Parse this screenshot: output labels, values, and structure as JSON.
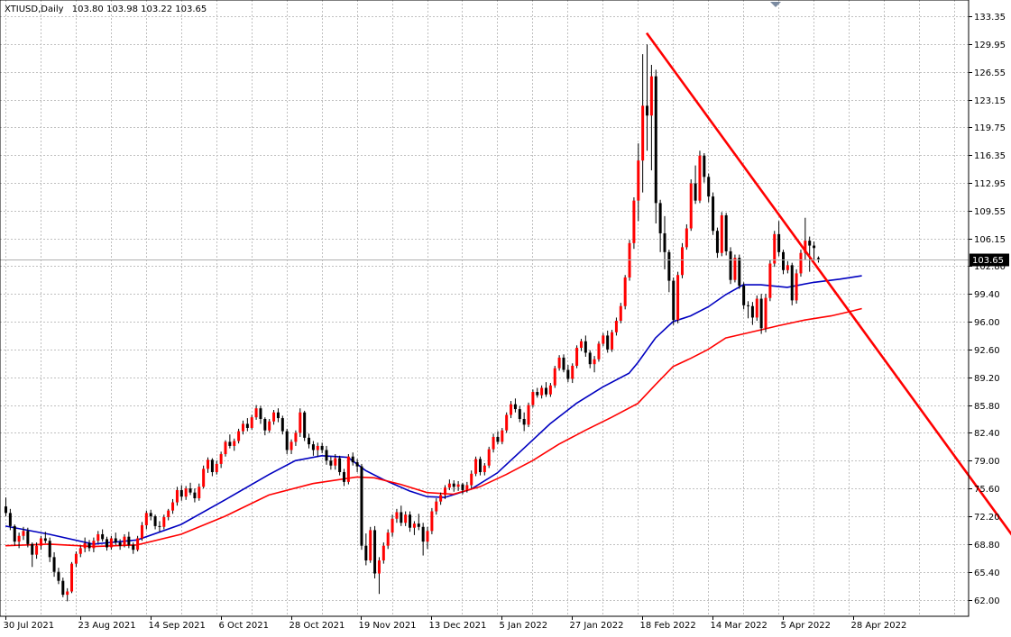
{
  "header": {
    "symbol": "XTIUSD,Daily",
    "ohlc": "103.80 103.98 103.22 103.65"
  },
  "colors": {
    "bull_body": "#ff0000",
    "bear_body": "#000000",
    "wick": "#000000",
    "ma_fast": "#0000c0",
    "ma_slow": "#ff0000",
    "trendline": "#ff0000",
    "price_tag_bg": "#000000",
    "price_tag_text": "#ffffff",
    "grid": "#c0c0c0"
  },
  "chart_data": {
    "type": "candlestick",
    "title": "XTIUSD,Daily",
    "ylim": [
      60.3,
      135.0
    ],
    "y_ticks": [
      "133.35",
      "129.95",
      "126.55",
      "123.15",
      "119.75",
      "116.35",
      "112.95",
      "109.55",
      "106.15",
      "102.80",
      "99.40",
      "96.00",
      "92.60",
      "89.20",
      "85.80",
      "82.40",
      "79.00",
      "75.60",
      "72.20",
      "68.80",
      "65.40",
      "62.00"
    ],
    "x_labels": [
      {
        "date": "30 Jul 2021",
        "bar": 0
      },
      {
        "date": "23 Aug 2021",
        "bar": 17
      },
      {
        "date": "14 Sep 2021",
        "bar": 33
      },
      {
        "date": "6 Oct 2021",
        "bar": 49
      },
      {
        "date": "28 Oct 2021",
        "bar": 65
      },
      {
        "date": "19 Nov 2021",
        "bar": 81
      },
      {
        "date": "13 Dec 2021",
        "bar": 97
      },
      {
        "date": "5 Jan 2022",
        "bar": 113
      },
      {
        "date": "27 Jan 2022",
        "bar": 129
      },
      {
        "date": "18 Feb 2022",
        "bar": 145
      },
      {
        "date": "14 Mar 2022",
        "bar": 161
      },
      {
        "date": "5 Apr 2022",
        "bar": 177
      },
      {
        "date": "28 Apr 2022",
        "bar": 193
      }
    ],
    "current_price": 103.65,
    "candles": [
      [
        73.4,
        74.5,
        72.2,
        72.6
      ],
      [
        72.6,
        73.1,
        70.5,
        71.0
      ],
      [
        71.0,
        71.2,
        68.6,
        69.1
      ],
      [
        69.1,
        70.2,
        68.3,
        69.8
      ],
      [
        69.8,
        70.9,
        69.3,
        70.4
      ],
      [
        70.4,
        70.8,
        68.4,
        68.8
      ],
      [
        68.8,
        69.0,
        66.0,
        67.5
      ],
      [
        67.5,
        69.0,
        67.0,
        68.6
      ],
      [
        68.6,
        69.8,
        68.1,
        69.5
      ],
      [
        69.5,
        70.3,
        68.9,
        69.2
      ],
      [
        69.2,
        69.6,
        66.6,
        67.2
      ],
      [
        67.2,
        67.8,
        64.8,
        65.4
      ],
      [
        65.4,
        65.9,
        63.9,
        64.3
      ],
      [
        64.3,
        64.7,
        62.3,
        62.6
      ],
      [
        62.6,
        63.4,
        61.8,
        63.0
      ],
      [
        63.0,
        66.6,
        62.8,
        66.4
      ],
      [
        66.4,
        67.9,
        66.0,
        67.6
      ],
      [
        67.6,
        68.6,
        67.2,
        68.3
      ],
      [
        68.3,
        69.6,
        67.8,
        68.9
      ],
      [
        68.9,
        69.3,
        67.9,
        68.3
      ],
      [
        68.3,
        69.6,
        67.8,
        69.2
      ],
      [
        69.2,
        70.4,
        68.9,
        70.0
      ],
      [
        70.0,
        70.6,
        69.1,
        69.4
      ],
      [
        69.4,
        69.7,
        68.0,
        68.4
      ],
      [
        68.4,
        69.8,
        68.1,
        69.5
      ],
      [
        69.5,
        70.2,
        68.7,
        69.0
      ],
      [
        69.0,
        69.4,
        68.1,
        68.6
      ],
      [
        68.6,
        70.0,
        68.4,
        69.7
      ],
      [
        69.7,
        70.3,
        68.3,
        68.7
      ],
      [
        68.7,
        69.0,
        67.6,
        68.1
      ],
      [
        68.1,
        69.8,
        67.9,
        69.5
      ],
      [
        69.5,
        71.5,
        69.2,
        71.1
      ],
      [
        71.1,
        72.9,
        70.6,
        72.6
      ],
      [
        72.6,
        73.0,
        71.7,
        72.2
      ],
      [
        72.2,
        72.4,
        70.6,
        71.0
      ],
      [
        71.0,
        71.6,
        70.3,
        70.9
      ],
      [
        70.9,
        72.4,
        70.6,
        72.1
      ],
      [
        72.1,
        73.1,
        71.7,
        72.9
      ],
      [
        72.9,
        74.3,
        72.5,
        73.9
      ],
      [
        73.9,
        75.8,
        73.5,
        75.4
      ],
      [
        75.4,
        76.0,
        74.1,
        74.6
      ],
      [
        74.6,
        75.9,
        74.2,
        75.6
      ],
      [
        75.6,
        76.3,
        74.8,
        75.1
      ],
      [
        75.1,
        75.6,
        73.9,
        74.4
      ],
      [
        74.4,
        76.2,
        74.1,
        75.8
      ],
      [
        75.8,
        78.4,
        75.6,
        78.0
      ],
      [
        78.0,
        79.4,
        77.5,
        79.1
      ],
      [
        79.1,
        79.3,
        77.1,
        77.6
      ],
      [
        77.6,
        79.0,
        77.3,
        78.6
      ],
      [
        78.6,
        80.1,
        78.1,
        79.8
      ],
      [
        79.8,
        81.5,
        79.5,
        81.3
      ],
      [
        81.3,
        82.2,
        80.5,
        80.8
      ],
      [
        80.8,
        81.7,
        80.2,
        81.4
      ],
      [
        81.4,
        82.9,
        81.1,
        82.6
      ],
      [
        82.6,
        83.9,
        82.2,
        83.5
      ],
      [
        83.5,
        84.2,
        82.6,
        83.0
      ],
      [
        83.0,
        84.6,
        82.8,
        84.3
      ],
      [
        84.3,
        85.8,
        84.0,
        85.4
      ],
      [
        85.4,
        85.7,
        83.5,
        84.1
      ],
      [
        84.1,
        84.3,
        82.1,
        82.7
      ],
      [
        82.7,
        84.1,
        82.4,
        83.8
      ],
      [
        83.8,
        85.2,
        83.4,
        84.9
      ],
      [
        84.9,
        85.4,
        83.7,
        84.2
      ],
      [
        84.2,
        84.5,
        82.2,
        82.6
      ],
      [
        82.6,
        82.9,
        79.8,
        80.3
      ],
      [
        80.3,
        81.6,
        79.8,
        81.3
      ],
      [
        81.3,
        82.7,
        80.8,
        82.4
      ],
      [
        82.4,
        85.4,
        81.9,
        84.9
      ],
      [
        84.9,
        85.1,
        81.4,
        81.8
      ],
      [
        81.8,
        82.3,
        80.5,
        81.0
      ],
      [
        81.0,
        81.4,
        79.6,
        80.3
      ],
      [
        80.3,
        81.2,
        79.5,
        80.8
      ],
      [
        80.8,
        81.2,
        79.9,
        80.3
      ],
      [
        80.3,
        80.8,
        78.5,
        79.0
      ],
      [
        79.0,
        79.5,
        77.9,
        78.4
      ],
      [
        78.4,
        79.8,
        77.9,
        79.3
      ],
      [
        79.3,
        79.6,
        77.2,
        77.6
      ],
      [
        77.6,
        78.0,
        75.9,
        76.4
      ],
      [
        76.4,
        79.8,
        76.1,
        79.5
      ],
      [
        79.5,
        80.0,
        78.4,
        78.8
      ],
      [
        78.8,
        79.2,
        77.6,
        78.3
      ],
      [
        78.3,
        78.6,
        68.1,
        68.6
      ],
      [
        68.6,
        70.1,
        66.2,
        66.8
      ],
      [
        66.8,
        70.9,
        66.5,
        70.5
      ],
      [
        70.5,
        71.0,
        64.6,
        65.2
      ],
      [
        65.2,
        67.2,
        62.7,
        66.8
      ],
      [
        66.8,
        69.0,
        66.4,
        68.6
      ],
      [
        68.6,
        70.6,
        68.2,
        70.2
      ],
      [
        70.2,
        72.4,
        69.7,
        71.9
      ],
      [
        71.9,
        73.1,
        71.4,
        72.7
      ],
      [
        72.7,
        73.5,
        71.0,
        71.4
      ],
      [
        71.4,
        72.8,
        71.0,
        72.4
      ],
      [
        72.4,
        72.8,
        70.3,
        70.8
      ],
      [
        70.8,
        71.6,
        69.9,
        71.3
      ],
      [
        71.3,
        72.5,
        70.5,
        70.9
      ],
      [
        70.9,
        71.4,
        67.4,
        69.1
      ],
      [
        69.1,
        70.9,
        68.2,
        70.4
      ],
      [
        70.4,
        73.2,
        70.0,
        72.8
      ],
      [
        72.8,
        74.4,
        72.4,
        74.0
      ],
      [
        74.0,
        75.1,
        73.6,
        74.8
      ],
      [
        74.8,
        76.0,
        74.3,
        75.7
      ],
      [
        75.7,
        76.7,
        75.4,
        76.2
      ],
      [
        76.2,
        76.6,
        75.2,
        75.8
      ],
      [
        75.8,
        76.5,
        75.3,
        76.1
      ],
      [
        76.1,
        76.3,
        74.9,
        75.4
      ],
      [
        75.4,
        76.4,
        75.1,
        76.0
      ],
      [
        76.0,
        77.8,
        75.6,
        77.4
      ],
      [
        77.4,
        79.5,
        77.1,
        79.2
      ],
      [
        79.2,
        79.5,
        77.2,
        77.6
      ],
      [
        77.6,
        78.7,
        77.2,
        78.4
      ],
      [
        78.4,
        80.7,
        78.1,
        80.4
      ],
      [
        80.4,
        82.3,
        80.0,
        81.9
      ],
      [
        81.9,
        82.6,
        81.0,
        81.3
      ],
      [
        81.3,
        83.0,
        81.0,
        82.7
      ],
      [
        82.7,
        84.9,
        82.4,
        84.6
      ],
      [
        84.6,
        86.3,
        84.2,
        85.9
      ],
      [
        85.9,
        86.6,
        84.9,
        85.3
      ],
      [
        85.3,
        85.7,
        83.7,
        84.1
      ],
      [
        84.1,
        84.9,
        82.6,
        83.4
      ],
      [
        83.4,
        86.1,
        83.1,
        85.8
      ],
      [
        85.8,
        87.7,
        85.5,
        87.4
      ],
      [
        87.4,
        87.9,
        86.7,
        87.0
      ],
      [
        87.0,
        88.2,
        86.6,
        87.9
      ],
      [
        87.9,
        88.6,
        86.8,
        87.1
      ],
      [
        87.1,
        88.5,
        86.8,
        88.2
      ],
      [
        88.2,
        90.6,
        87.9,
        90.3
      ],
      [
        90.3,
        91.9,
        90.0,
        91.6
      ],
      [
        91.6,
        92.0,
        89.8,
        90.1
      ],
      [
        90.1,
        90.7,
        88.6,
        89.0
      ],
      [
        89.0,
        90.9,
        88.5,
        90.6
      ],
      [
        90.6,
        93.1,
        90.3,
        92.8
      ],
      [
        92.8,
        93.9,
        92.4,
        93.6
      ],
      [
        93.6,
        94.3,
        91.7,
        92.2
      ],
      [
        92.2,
        92.5,
        90.3,
        90.8
      ],
      [
        90.8,
        91.8,
        89.8,
        91.4
      ],
      [
        91.4,
        93.6,
        91.1,
        93.3
      ],
      [
        93.3,
        94.6,
        93.0,
        94.3
      ],
      [
        94.3,
        94.9,
        92.2,
        92.6
      ],
      [
        92.6,
        95.0,
        92.3,
        94.7
      ],
      [
        94.7,
        96.5,
        94.3,
        96.1
      ],
      [
        96.1,
        98.3,
        95.8,
        97.9
      ],
      [
        97.9,
        101.7,
        97.5,
        101.4
      ],
      [
        101.4,
        106.0,
        101.0,
        105.6
      ],
      [
        105.6,
        111.2,
        104.9,
        110.8
      ],
      [
        110.8,
        117.8,
        108.3,
        115.7
      ],
      [
        115.7,
        128.7,
        111.8,
        122.4
      ],
      [
        122.4,
        129.9,
        116.9,
        121.2
      ],
      [
        121.2,
        127.4,
        114.5,
        126.0
      ],
      [
        126.0,
        126.8,
        108.0,
        110.5
      ],
      [
        110.5,
        110.9,
        104.5,
        106.8
      ],
      [
        106.8,
        108.9,
        102.4,
        104.5
      ],
      [
        104.5,
        104.8,
        99.6,
        101.0
      ],
      [
        101.0,
        101.4,
        95.6,
        96.2
      ],
      [
        96.2,
        102.1,
        95.8,
        101.7
      ],
      [
        101.7,
        105.6,
        101.3,
        105.1
      ],
      [
        105.1,
        107.9,
        104.8,
        107.4
      ],
      [
        107.4,
        113.4,
        107.1,
        112.9
      ],
      [
        112.9,
        115.1,
        110.4,
        110.8
      ],
      [
        110.8,
        116.9,
        110.5,
        116.3
      ],
      [
        116.3,
        116.6,
        113.0,
        113.7
      ],
      [
        113.7,
        114.1,
        110.6,
        111.3
      ],
      [
        111.3,
        111.8,
        106.6,
        107.1
      ],
      [
        107.1,
        107.5,
        103.8,
        104.4
      ],
      [
        104.4,
        109.4,
        104.0,
        109.0
      ],
      [
        109.0,
        109.3,
        104.1,
        104.6
      ],
      [
        104.6,
        105.1,
        100.6,
        101.1
      ],
      [
        101.1,
        104.2,
        100.8,
        103.8
      ],
      [
        103.8,
        104.2,
        100.0,
        100.4
      ],
      [
        100.4,
        100.8,
        97.5,
        98.0
      ],
      [
        98.0,
        98.5,
        96.4,
        97.9
      ],
      [
        97.9,
        98.4,
        95.6,
        96.5
      ],
      [
        96.5,
        99.2,
        96.1,
        98.8
      ],
      [
        98.8,
        99.4,
        94.5,
        95.2
      ],
      [
        95.2,
        99.4,
        94.7,
        98.9
      ],
      [
        98.9,
        103.5,
        98.5,
        103.1
      ],
      [
        103.1,
        107.1,
        102.7,
        106.7
      ],
      [
        106.7,
        108.3,
        104.0,
        104.5
      ],
      [
        104.5,
        104.8,
        101.8,
        102.3
      ],
      [
        102.3,
        103.4,
        101.9,
        102.9
      ],
      [
        102.9,
        103.2,
        98.0,
        98.6
      ],
      [
        98.6,
        102.4,
        98.2,
        101.9
      ],
      [
        101.9,
        104.8,
        101.5,
        104.4
      ],
      [
        104.4,
        108.7,
        103.5,
        105.9
      ],
      [
        105.9,
        106.4,
        102.1,
        105.3
      ],
      [
        105.3,
        105.8,
        103.6,
        105.0
      ],
      [
        103.8,
        103.98,
        103.22,
        103.65
      ]
    ],
    "indicators": [
      {
        "type": "moving_average",
        "color": "#0000c0",
        "values": [
          [
            0,
            71.0
          ],
          [
            10,
            70.0
          ],
          [
            20,
            68.8
          ],
          [
            30,
            69.3
          ],
          [
            40,
            71.2
          ],
          [
            50,
            74.2
          ],
          [
            60,
            77.3
          ],
          [
            66,
            79.0
          ],
          [
            72,
            79.6
          ],
          [
            78,
            79.4
          ],
          [
            82,
            77.8
          ],
          [
            86,
            76.7
          ],
          [
            92,
            75.3
          ],
          [
            96,
            74.6
          ],
          [
            100,
            74.5
          ],
          [
            106,
            75.5
          ],
          [
            112,
            77.5
          ],
          [
            118,
            80.5
          ],
          [
            124,
            83.5
          ],
          [
            130,
            86.0
          ],
          [
            136,
            88.0
          ],
          [
            142,
            89.7
          ],
          [
            144,
            91.0
          ],
          [
            148,
            94.0
          ],
          [
            152,
            96.0
          ],
          [
            156,
            96.7
          ],
          [
            160,
            97.8
          ],
          [
            164,
            99.3
          ],
          [
            168,
            100.5
          ],
          [
            172,
            100.5
          ],
          [
            178,
            100.2
          ],
          [
            184,
            100.8
          ],
          [
            190,
            101.2
          ],
          [
            195,
            101.6
          ]
        ]
      },
      {
        "type": "moving_average",
        "color": "#ff0000",
        "values": [
          [
            0,
            68.6
          ],
          [
            10,
            68.8
          ],
          [
            20,
            68.5
          ],
          [
            30,
            68.7
          ],
          [
            40,
            70.0
          ],
          [
            50,
            72.2
          ],
          [
            60,
            74.8
          ],
          [
            70,
            76.2
          ],
          [
            80,
            77.0
          ],
          [
            84,
            76.9
          ],
          [
            90,
            76.1
          ],
          [
            96,
            75.1
          ],
          [
            102,
            74.9
          ],
          [
            108,
            75.8
          ],
          [
            114,
            77.3
          ],
          [
            120,
            79.0
          ],
          [
            126,
            81.0
          ],
          [
            132,
            82.7
          ],
          [
            138,
            84.3
          ],
          [
            144,
            86.0
          ],
          [
            148,
            88.3
          ],
          [
            152,
            90.5
          ],
          [
            156,
            91.5
          ],
          [
            160,
            92.6
          ],
          [
            164,
            94.0
          ],
          [
            168,
            94.5
          ],
          [
            172,
            95.0
          ],
          [
            176,
            95.5
          ],
          [
            182,
            96.2
          ],
          [
            188,
            96.7
          ],
          [
            192,
            97.2
          ],
          [
            195,
            97.6
          ]
        ]
      }
    ],
    "annotations": [
      {
        "type": "trendline",
        "color": "#ff0000",
        "from": {
          "bar": 146,
          "price": 131.3
        },
        "to": {
          "bar": 238,
          "price": 63.4
        }
      }
    ]
  }
}
